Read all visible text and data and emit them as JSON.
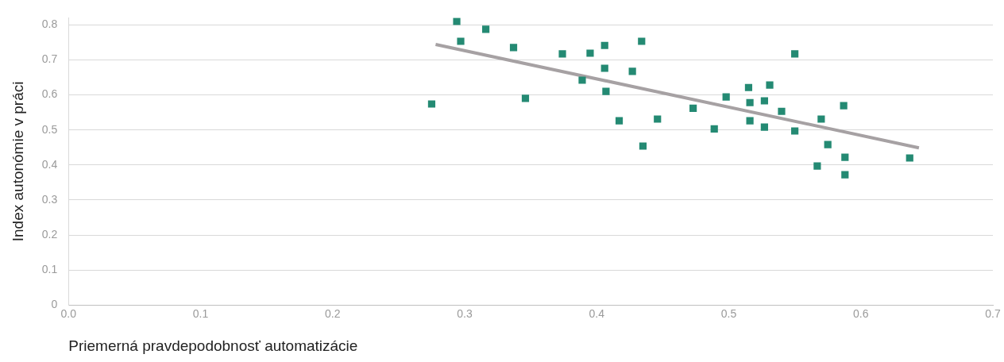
{
  "chart_data": {
    "type": "scatter",
    "xlabel": "Priemerná pravdepodobnosť automatizácie",
    "ylabel": "Index autonómie v práci",
    "xlim": [
      0,
      0.7
    ],
    "xticks": [
      {
        "value": 0,
        "label": "0.0"
      },
      0.1,
      0.2,
      0.3,
      0.4,
      0.5,
      0.6,
      0.7
    ],
    "ylim": [
      0,
      0.82
    ],
    "yticks": [
      0,
      0.1,
      0.2,
      0.3,
      0.4,
      0.5,
      0.6,
      0.7,
      0.8
    ],
    "grid": "y",
    "legend": false,
    "marker": "square",
    "series": [
      {
        "color": "#248a73",
        "x": [
          0.275,
          0.294,
          0.297,
          0.316,
          0.337,
          0.346,
          0.374,
          0.389,
          0.395,
          0.406,
          0.406,
          0.407,
          0.417,
          0.427,
          0.434,
          0.435,
          0.446,
          0.473,
          0.489,
          0.498,
          0.515,
          0.516,
          0.516,
          0.527,
          0.527,
          0.531,
          0.54,
          0.55,
          0.55,
          0.567,
          0.57,
          0.575,
          0.587,
          0.588,
          0.588,
          0.637
        ],
        "values": [
          0.574,
          0.81,
          0.753,
          0.787,
          0.735,
          0.59,
          0.717,
          0.642,
          0.719,
          0.741,
          0.676,
          0.61,
          0.526,
          0.667,
          0.753,
          0.454,
          0.531,
          0.562,
          0.503,
          0.594,
          0.621,
          0.578,
          0.526,
          0.583,
          0.508,
          0.628,
          0.553,
          0.717,
          0.497,
          0.397,
          0.531,
          0.458,
          0.569,
          0.422,
          0.372,
          0.42
        ]
      },
      {
        "type": "line",
        "marker": "none",
        "color": "#a6a1a3",
        "x": [
          0.278,
          0.644
        ],
        "values": [
          0.744,
          0.449
        ]
      }
    ]
  }
}
